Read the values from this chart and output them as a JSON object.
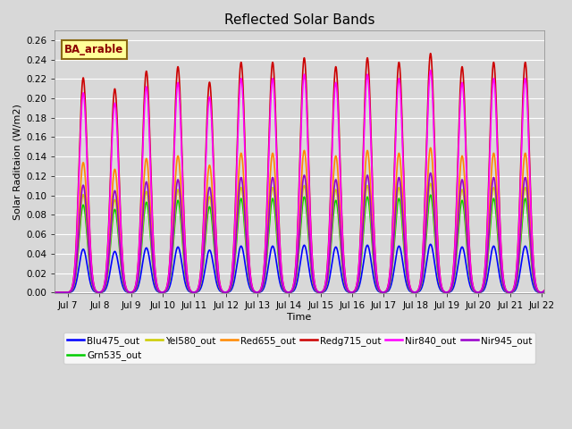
{
  "title": "Reflected Solar Bands",
  "xlabel": "Time",
  "ylabel": "Solar Raditaion (W/m2)",
  "xlim_days": [
    6.58,
    22.08
  ],
  "ylim": [
    -0.001,
    0.27
  ],
  "yticks": [
    0.0,
    0.02,
    0.04,
    0.06,
    0.08,
    0.1,
    0.12,
    0.14,
    0.16,
    0.18,
    0.2,
    0.22,
    0.24,
    0.26
  ],
  "xtick_labels": [
    "Jul 7",
    "Jul 8",
    "Jul 9",
    "Jul 10",
    "Jul 11",
    "Jul 12",
    "Jul 13",
    "Jul 14",
    "Jul 15",
    "Jul 16",
    "Jul 17",
    "Jul 18",
    "Jul 19",
    "Jul 20",
    "Jul 21",
    "Jul 22"
  ],
  "xtick_positions": [
    7,
    8,
    9,
    10,
    11,
    12,
    13,
    14,
    15,
    16,
    17,
    18,
    19,
    20,
    21,
    22
  ],
  "annotation_text": "BA_arable",
  "fig_facecolor": "#d8d8d8",
  "ax_facecolor": "#d8d8d8",
  "grid_color": "#ffffff",
  "series": [
    {
      "label": "Blu475_out",
      "color": "#0000ff",
      "base_peak": 0.046,
      "lw": 1.2
    },
    {
      "label": "Grn535_out",
      "color": "#00cc00",
      "base_peak": 0.093,
      "lw": 1.2
    },
    {
      "label": "Yel580_out",
      "color": "#cccc00",
      "base_peak": 0.104,
      "lw": 1.2
    },
    {
      "label": "Red655_out",
      "color": "#ff8800",
      "base_peak": 0.138,
      "lw": 1.2
    },
    {
      "label": "Redg715_out",
      "color": "#cc0000",
      "base_peak": 0.228,
      "lw": 1.2
    },
    {
      "label": "Nir840_out",
      "color": "#ff00ff",
      "base_peak": 0.212,
      "lw": 1.2
    },
    {
      "label": "Nir945_out",
      "color": "#9900cc",
      "base_peak": 0.114,
      "lw": 1.2
    }
  ],
  "day_peaks": [
    0.97,
    0.92,
    1.0,
    1.02,
    0.95,
    1.04,
    1.04,
    1.06,
    1.02,
    1.06,
    1.04,
    1.08,
    1.02,
    1.04,
    1.04,
    1.05
  ]
}
